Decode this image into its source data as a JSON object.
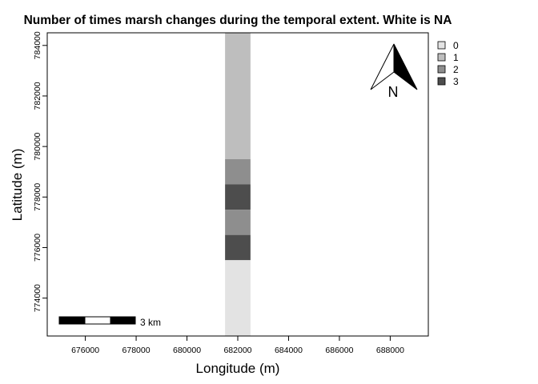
{
  "chart_data": {
    "type": "heatmap",
    "title": "Number of times marsh changes during the temporal extent. White is NA",
    "xlabel": "Longitude (m)",
    "ylabel": "Latitude (m)",
    "xlim": [
      674500,
      689500
    ],
    "ylim": [
      772500,
      784500
    ],
    "x_ticks": [
      676000,
      678000,
      680000,
      682000,
      684000,
      686000,
      688000
    ],
    "y_ticks": [
      774000,
      776000,
      778000,
      780000,
      782000,
      784000
    ],
    "x_tick_labels": [
      "676000",
      "678000",
      "680000",
      "682000",
      "684000",
      "686000",
      "688000"
    ],
    "y_tick_labels": [
      "774000",
      "776000",
      "778000",
      "780000",
      "782000",
      "784000"
    ],
    "legend": {
      "position": "right",
      "entries": [
        {
          "label": "0",
          "color": "#e3e3e3"
        },
        {
          "label": "1",
          "color": "#bebebe"
        },
        {
          "label": "2",
          "color": "#8e8e8e"
        },
        {
          "label": "3",
          "color": "#4d4d4d"
        }
      ]
    },
    "cells": [
      {
        "x0": 681500,
        "x1": 682500,
        "y0": 779500,
        "y1": 784500,
        "value": 1
      },
      {
        "x0": 681500,
        "x1": 682500,
        "y0": 778500,
        "y1": 779500,
        "value": 2
      },
      {
        "x0": 681500,
        "x1": 682500,
        "y0": 777500,
        "y1": 778500,
        "value": 3
      },
      {
        "x0": 681500,
        "x1": 682500,
        "y0": 776500,
        "y1": 777500,
        "value": 2
      },
      {
        "x0": 681500,
        "x1": 682500,
        "y0": 775500,
        "y1": 776500,
        "value": 3
      },
      {
        "x0": 681500,
        "x1": 682500,
        "y0": 772500,
        "y1": 775500,
        "value": 0
      }
    ],
    "scale_bar": {
      "label": "3 km",
      "length_m": 3000,
      "segments": 3
    },
    "north_arrow": {
      "label": "N"
    }
  }
}
